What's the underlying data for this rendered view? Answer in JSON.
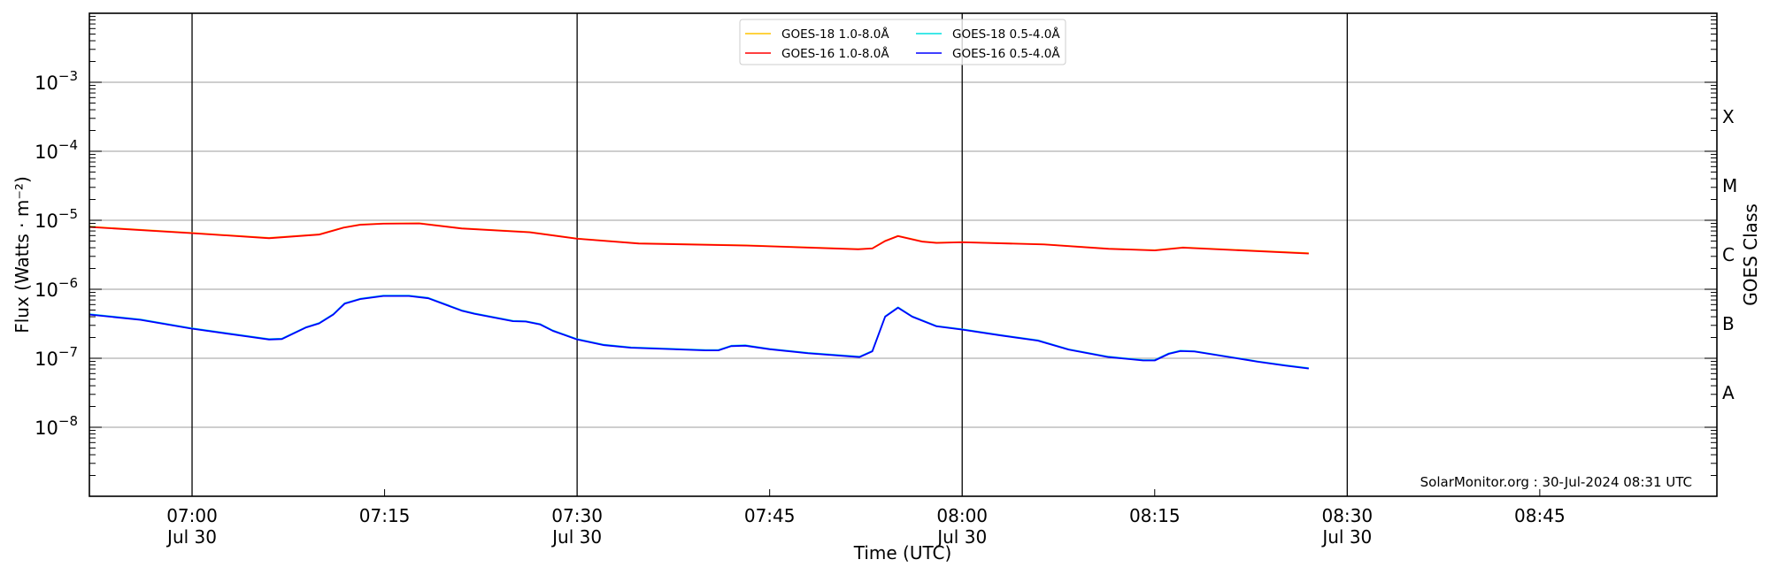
{
  "chart_data": {
    "type": "line",
    "title": "",
    "xlabel": "Time (UTC)",
    "ylabel": "Flux (Watts · m⁻²)",
    "ylabel_right": "GOES Class",
    "yscale": "log",
    "ylim_exp": [
      -9,
      -2
    ],
    "xlim": [
      "06:52",
      "08:58.8"
    ],
    "y_ticks": [
      {
        "exp": -8,
        "label": "10",
        "sup": "−8"
      },
      {
        "exp": -7,
        "label": "10",
        "sup": "−7"
      },
      {
        "exp": -6,
        "label": "10",
        "sup": "−6"
      },
      {
        "exp": -5,
        "label": "10",
        "sup": "−5"
      },
      {
        "exp": -4,
        "label": "10",
        "sup": "−4"
      },
      {
        "exp": -3,
        "label": "10",
        "sup": "−3"
      }
    ],
    "class_labels": [
      {
        "exp": -7.5,
        "label": "A"
      },
      {
        "exp": -6.5,
        "label": "B"
      },
      {
        "exp": -5.5,
        "label": "C"
      },
      {
        "exp": -4.5,
        "label": "M"
      },
      {
        "exp": -3.5,
        "label": "X"
      }
    ],
    "x_ticks": [
      {
        "t": "07:00",
        "label": "07:00",
        "sub": "Jul 30",
        "major": true
      },
      {
        "t": "07:15",
        "label": "07:15",
        "sub": "",
        "major": false
      },
      {
        "t": "07:30",
        "label": "07:30",
        "sub": "Jul 30",
        "major": true
      },
      {
        "t": "07:45",
        "label": "07:45",
        "sub": "",
        "major": false
      },
      {
        "t": "08:00",
        "label": "08:00",
        "sub": "Jul 30",
        "major": true
      },
      {
        "t": "08:15",
        "label": "08:15",
        "sub": "",
        "major": false
      },
      {
        "t": "08:30",
        "label": "08:30",
        "sub": "Jul 30",
        "major": true
      },
      {
        "t": "08:45",
        "label": "08:45",
        "sub": "",
        "major": false
      }
    ],
    "grid": "horizontal at decades",
    "legend_placement": "top-center",
    "series": [
      {
        "name": "GOES-18 1.0-8.0Å",
        "color": "#ffc400",
        "same_as": 2,
        "offset_exp": 0.004
      },
      {
        "name": "GOES-18 0.5-4.0Å",
        "color": "#00e0e0",
        "same_as": 3,
        "offset_exp": 0.006
      },
      {
        "name": "GOES-16 1.0-8.0Å",
        "color": "#ff0000",
        "t": [
          "06:52",
          "07:00",
          "07:06",
          "07:09.9",
          "07:11.8",
          "07:13.1",
          "07:14.9",
          "07:17.7",
          "07:21",
          "07:26.3",
          "07:30",
          "07:34.8",
          "07:43.2",
          "07:51.9",
          "07:53",
          "07:54",
          "07:55",
          "07:56.9",
          "07:58",
          "08:00",
          "08:06.4",
          "08:11.4",
          "08:15",
          "08:17.2",
          "08:27"
        ],
        "values": [
          8e-06,
          6.5e-06,
          5.5e-06,
          6.2e-06,
          7.8e-06,
          8.6e-06,
          8.9e-06,
          9e-06,
          7.6e-06,
          6.7e-06,
          5.4e-06,
          4.6e-06,
          4.3e-06,
          3.8e-06,
          3.9e-06,
          5e-06,
          5.9e-06,
          4.9e-06,
          4.7e-06,
          4.8e-06,
          4.45e-06,
          3.85e-06,
          3.65e-06,
          4e-06,
          3.3e-06
        ]
      },
      {
        "name": "GOES-16 0.5-4.0Å",
        "color": "#0000ff",
        "t": [
          "06:52",
          "06:56",
          "06:59.9",
          "07:06",
          "07:07",
          "07:08.9",
          "07:09.9",
          "07:11",
          "07:11.9",
          "07:13.1",
          "07:14.9",
          "07:16.9",
          "07:18.4",
          "07:21",
          "07:22",
          "07:25",
          "07:26",
          "07:27.1",
          "07:28.1",
          "07:30",
          "07:32.1",
          "07:34.2",
          "07:40",
          "07:41",
          "07:42",
          "07:43.1",
          "07:45",
          "07:48",
          "07:52",
          "07:53",
          "07:54",
          "07:55",
          "07:56.1",
          "07:58",
          "08:00",
          "08:03",
          "08:05.9",
          "08:08.3",
          "08:11.4",
          "08:14.1",
          "08:15",
          "08:16.1",
          "08:17",
          "08:18.1",
          "08:22.1",
          "08:23",
          "08:25.2",
          "08:27"
        ],
        "values": [
          4.3e-07,
          3.6e-07,
          2.7e-07,
          1.87e-07,
          1.9e-07,
          2.8e-07,
          3.2e-07,
          4.3e-07,
          6.2e-07,
          7.2e-07,
          8e-07,
          8e-07,
          7.4e-07,
          4.9e-07,
          4.4e-07,
          3.45e-07,
          3.4e-07,
          3.1e-07,
          2.5e-07,
          1.87e-07,
          1.55e-07,
          1.42e-07,
          1.3e-07,
          1.3e-07,
          1.5e-07,
          1.52e-07,
          1.35e-07,
          1.18e-07,
          1.04e-07,
          1.26e-07,
          4e-07,
          5.4e-07,
          4e-07,
          2.9e-07,
          2.6e-07,
          2.14e-07,
          1.8e-07,
          1.33e-07,
          1.04e-07,
          9.3e-08,
          9.3e-08,
          1.16e-07,
          1.27e-07,
          1.25e-07,
          9.5e-08,
          8.9e-08,
          7.8e-08,
          7.1e-08
        ]
      }
    ],
    "annotation": "SolarMonitor.org : 30-Jul-2024 08:31 UTC"
  }
}
